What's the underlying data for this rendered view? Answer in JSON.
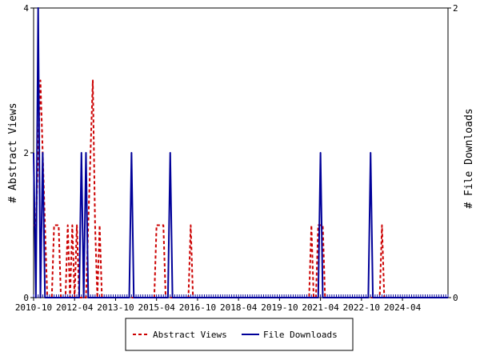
{
  "chart_data": {
    "type": "line",
    "xlabel": "",
    "ylabel_left": "# Abstract Views",
    "ylabel_right": "# File Downloads",
    "ylim_left": [
      0,
      4
    ],
    "ylim_right": [
      0,
      2
    ],
    "yticks_left": [
      "0",
      "2",
      "4"
    ],
    "yticks_right": [
      "0",
      "2"
    ],
    "x_range": [
      "2010-10",
      "2025-12"
    ],
    "xtick_labels": [
      "2010-10",
      "2012-04",
      "2013-10",
      "2015-04",
      "2016-10",
      "2018-04",
      "2019-10",
      "2021-04",
      "2022-10",
      "2024-04"
    ],
    "legend_position": "bottom-center",
    "grid": false,
    "series": [
      {
        "name": "Abstract Views",
        "axis": "left",
        "color": "#cc0000",
        "style": "dashed",
        "x": [
          "2010-10",
          "2010-11",
          "2010-12",
          "2011-01",
          "2011-02",
          "2011-03",
          "2011-04",
          "2011-05",
          "2011-06",
          "2011-07",
          "2011-08",
          "2011-09",
          "2011-10",
          "2011-11",
          "2011-12",
          "2012-01",
          "2012-02",
          "2012-03",
          "2012-04",
          "2012-05",
          "2012-06",
          "2012-07",
          "2012-08",
          "2012-09",
          "2012-10",
          "2012-11",
          "2012-12",
          "2013-01",
          "2013-02",
          "2013-03",
          "2013-04",
          "2013-05",
          "2013-06",
          "2013-07",
          "2013-08",
          "2015-03",
          "2015-04",
          "2015-05",
          "2015-06",
          "2015-07",
          "2015-08",
          "2016-06",
          "2016-07",
          "2016-08",
          "2020-11",
          "2020-12",
          "2021-01",
          "2021-02",
          "2021-03",
          "2021-04",
          "2021-05",
          "2021-06",
          "2023-06",
          "2023-07",
          "2023-08"
        ],
        "values": [
          1,
          1,
          2,
          3,
          2,
          1,
          0,
          0,
          0,
          1,
          1,
          1,
          0,
          0,
          0,
          1,
          0,
          1,
          0,
          1,
          0,
          0,
          0,
          0,
          1,
          2,
          3,
          1,
          0,
          1,
          0,
          0,
          0,
          0,
          0,
          0,
          1,
          1,
          1,
          1,
          0,
          0,
          1,
          0,
          0,
          1,
          0,
          0,
          1,
          1,
          1,
          0,
          0,
          1,
          0
        ]
      },
      {
        "name": "File Downloads",
        "axis": "right",
        "color": "#000099",
        "style": "solid",
        "x": [
          "2010-10",
          "2010-11",
          "2010-12",
          "2011-01",
          "2011-02",
          "2011-03",
          "2012-06",
          "2012-07",
          "2012-08",
          "2012-09",
          "2012-10",
          "2014-04",
          "2014-05",
          "2014-06",
          "2015-09",
          "2015-10",
          "2015-11",
          "2021-03",
          "2021-04",
          "2021-05",
          "2023-01",
          "2023-02",
          "2023-03"
        ],
        "values": [
          1,
          0,
          2,
          0,
          1,
          0,
          0,
          1,
          0,
          1,
          0,
          0,
          1,
          0,
          0,
          1,
          0,
          0,
          1,
          0,
          0,
          1,
          0
        ]
      }
    ]
  }
}
